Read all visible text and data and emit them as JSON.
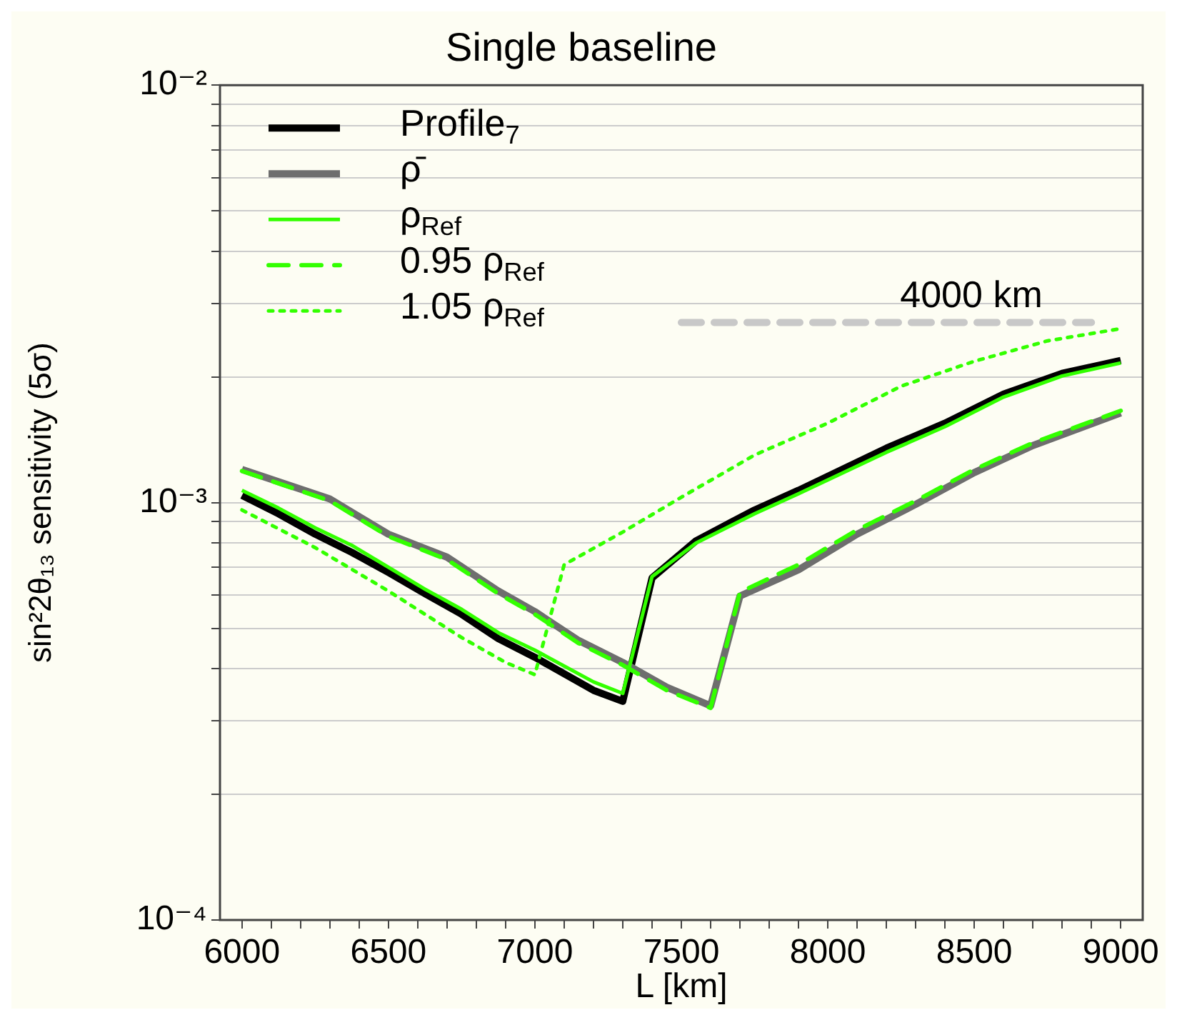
{
  "chart_data": {
    "type": "line",
    "title": "Single baseline",
    "xlabel": "L [km]",
    "ylabel": "sin²2θ₁₃ sensitivity (5σ)",
    "xlim": [
      5925,
      9075
    ],
    "ylim": [
      0.0001,
      0.01
    ],
    "log": "y",
    "grid": "y",
    "legend": "top left",
    "xticks": [
      6000,
      {
        "value": 6100,
        "label": null
      },
      {
        "value": 6200,
        "label": null
      },
      {
        "value": 6300,
        "label": null
      },
      {
        "value": 6400,
        "label": null
      },
      6500,
      {
        "value": 6600,
        "label": null
      },
      {
        "value": 6700,
        "label": null
      },
      {
        "value": 6800,
        "label": null
      },
      {
        "value": 6900,
        "label": null
      },
      7000,
      {
        "value": 7100,
        "label": null
      },
      {
        "value": 7200,
        "label": null
      },
      {
        "value": 7300,
        "label": null
      },
      {
        "value": 7400,
        "label": null
      },
      7500,
      {
        "value": 7600,
        "label": null
      },
      {
        "value": 7700,
        "label": null
      },
      {
        "value": 7800,
        "label": null
      },
      {
        "value": 7900,
        "label": null
      },
      8000,
      {
        "value": 8100,
        "label": null
      },
      {
        "value": 8200,
        "label": null
      },
      {
        "value": 8300,
        "label": null
      },
      {
        "value": 8400,
        "label": null
      },
      8500,
      {
        "value": 8600,
        "label": null
      },
      {
        "value": 8700,
        "label": null
      },
      {
        "value": 8800,
        "label": null
      },
      {
        "value": 8900,
        "label": null
      },
      9000
    ],
    "yticks": [
      {
        "value": 0.0001,
        "label": "10⁻⁴"
      },
      {
        "value": 0.0002,
        "label": null
      },
      {
        "value": 0.0003,
        "label": null
      },
      {
        "value": 0.0004,
        "label": null
      },
      {
        "value": 0.0005,
        "label": null
      },
      {
        "value": 0.0006,
        "label": null
      },
      {
        "value": 0.0007,
        "label": null
      },
      {
        "value": 0.0008,
        "label": null
      },
      {
        "value": 0.0009,
        "label": null
      },
      {
        "value": 0.001,
        "label": "10⁻³"
      },
      {
        "value": 0.002,
        "label": null
      },
      {
        "value": 0.003,
        "label": null
      },
      {
        "value": 0.004,
        "label": null
      },
      {
        "value": 0.005,
        "label": null
      },
      {
        "value": 0.006,
        "label": null
      },
      {
        "value": 0.007,
        "label": null
      },
      {
        "value": 0.008,
        "label": null
      },
      {
        "value": 0.009,
        "label": null
      },
      {
        "value": 0.01,
        "label": "10⁻²"
      }
    ],
    "series": [
      {
        "name": "Profile$_{7}$",
        "color": "#000000",
        "line_style": "solid",
        "x": [
          6000,
          6125,
          6250,
          6375,
          6500,
          6625,
          6750,
          6875,
          7000,
          7200,
          7300,
          7400,
          7550,
          7750,
          7900,
          8200,
          8400,
          8600,
          8800,
          9000
        ],
        "values": [
          0.00104,
          0.00094,
          0.00084,
          0.00076,
          0.00068,
          0.000605,
          0.00054,
          0.000472,
          0.000426,
          0.000355,
          0.000334,
          0.00066,
          0.00081,
          0.00096,
          0.00107,
          0.00135,
          0.00155,
          0.00182,
          0.00204,
          0.00219
        ]
      },
      {
        "name": "ρ̄",
        "color": "#6e6e6e",
        "line_style": "solid",
        "x": [
          6000,
          6300,
          6500,
          6700,
          6875,
          7000,
          7150,
          7300,
          7450,
          7600,
          7700,
          7900,
          8100,
          8300,
          8500,
          8700,
          9000
        ],
        "values": [
          0.0012,
          0.00102,
          0.00084,
          0.00074,
          0.000614,
          0.000548,
          0.000467,
          0.000414,
          0.000361,
          0.000326,
          0.000597,
          0.00069,
          0.00084,
          0.00099,
          0.00118,
          0.00137,
          0.00164
        ]
      },
      {
        "name": "ρ$_{Ref}$",
        "color": "#33ff00",
        "line_style": "solid",
        "x": [
          6000,
          6125,
          6250,
          6375,
          6500,
          6625,
          6750,
          6875,
          7000,
          7200,
          7300,
          7400,
          7550,
          7750,
          7900,
          8200,
          8400,
          8600,
          8800,
          9000
        ],
        "values": [
          0.00107,
          0.00097,
          0.00087,
          0.00079,
          0.0007,
          0.00062,
          0.000555,
          0.000488,
          0.000443,
          0.000372,
          0.000349,
          0.000665,
          0.0008,
          0.00094,
          0.00105,
          0.00132,
          0.00152,
          0.00179,
          0.00201,
          0.00216
        ]
      },
      {
        "name": "0.95 ρ$_{Ref}$",
        "color": "#33ff00",
        "line_style": "dashed",
        "x": [
          6000,
          6300,
          6500,
          6700,
          6875,
          7000,
          7150,
          7300,
          7450,
          7600,
          7700,
          7900,
          8100,
          8300,
          8500,
          8700,
          9000
        ],
        "values": [
          0.00119,
          0.00101,
          0.00083,
          0.00073,
          0.000605,
          0.00054,
          0.00046,
          0.000408,
          0.000355,
          0.000322,
          0.00061,
          0.00071,
          0.00086,
          0.00101,
          0.0012,
          0.00139,
          0.00166
        ]
      },
      {
        "name": "1.05 ρ$_{Ref}$",
        "color": "#33ff00",
        "line_style": "dotted",
        "x": [
          6000,
          6250,
          6500,
          6750,
          6900,
          7000,
          7100,
          7300,
          7500,
          7750,
          8000,
          8250,
          8500,
          8750,
          9000
        ],
        "values": [
          0.00096,
          0.00078,
          0.000614,
          0.000475,
          0.000414,
          0.000387,
          0.00071,
          0.00085,
          0.00103,
          0.0013,
          0.00155,
          0.0019,
          0.00218,
          0.00244,
          0.00261
        ]
      },
      {
        "color": "#c8c8c8",
        "line_style": "dashed",
        "x": [
          7500,
          8900
        ],
        "values": [
          0.0027,
          0.0027
        ]
      }
    ],
    "annotations": [
      "4000 km"
    ]
  }
}
